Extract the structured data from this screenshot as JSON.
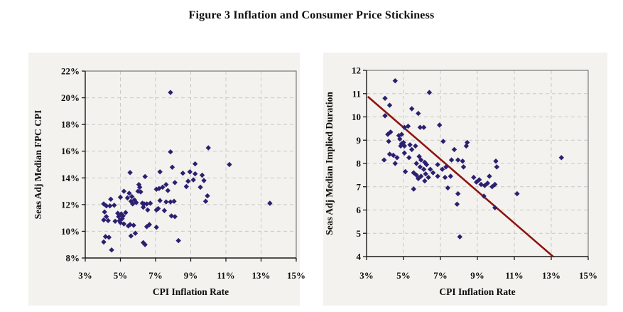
{
  "page": {
    "title": "Figure 3 Inflation and Consumer Price Stickiness"
  },
  "colors": {
    "marker": "#2b2070",
    "trend_line": "#8e1410",
    "grid": "#c8c8c6",
    "axis": "#1a1a1a",
    "frame": "#7d7d7d",
    "panel_background": "#f3f2ee",
    "text": "#0d0d0d"
  },
  "chart_data": [
    {
      "type": "scatter",
      "name": "inflation-vs-fpc-cpi",
      "xlabel": "CPI Inflation Rate",
      "ylabel": "Seas Adj Median FPC CPI",
      "xlim": [
        3,
        15
      ],
      "ylim": [
        8,
        22
      ],
      "x_tick_values": [
        3,
        5,
        7,
        9,
        11,
        13,
        15
      ],
      "x_tick_labels": [
        "3%",
        "5%",
        "7%",
        "9%",
        "11%",
        "13%",
        "15%"
      ],
      "y_tick_values": [
        8,
        10,
        12,
        14,
        16,
        18,
        20,
        22
      ],
      "y_tick_labels": [
        "8%",
        "10%",
        "12%",
        "14%",
        "16%",
        "18%",
        "20%",
        "22%"
      ],
      "grid": true,
      "legend": "none",
      "marker": "diamond",
      "points": [
        [
          4.05,
          9.2
        ],
        [
          4.15,
          9.6
        ],
        [
          4.35,
          9.55
        ],
        [
          4.5,
          8.6
        ],
        [
          4.05,
          10.85
        ],
        [
          4.1,
          11.45
        ],
        [
          4.2,
          11.1
        ],
        [
          4.3,
          10.8
        ],
        [
          4.7,
          10.75
        ],
        [
          4.95,
          10.8
        ],
        [
          5.0,
          10.65
        ],
        [
          5.2,
          10.55
        ],
        [
          4.05,
          12.05
        ],
        [
          4.2,
          11.9
        ],
        [
          4.4,
          11.9
        ],
        [
          4.45,
          12.4
        ],
        [
          4.65,
          11.95
        ],
        [
          4.85,
          11.35
        ],
        [
          4.9,
          11.1
        ],
        [
          5.05,
          11.3
        ],
        [
          5.1,
          10.95
        ],
        [
          5.15,
          11.15
        ],
        [
          5.3,
          11.4
        ],
        [
          5.45,
          10.4
        ],
        [
          5.55,
          10.5
        ],
        [
          5.75,
          10.45
        ],
        [
          5.6,
          9.65
        ],
        [
          5.85,
          9.85
        ],
        [
          5.0,
          12.55
        ],
        [
          5.2,
          13.0
        ],
        [
          5.4,
          12.5
        ],
        [
          5.5,
          12.85
        ],
        [
          5.55,
          14.4
        ],
        [
          5.6,
          12.25
        ],
        [
          5.65,
          12.6
        ],
        [
          5.7,
          12.05
        ],
        [
          5.8,
          12.35
        ],
        [
          5.9,
          12.15
        ],
        [
          6.0,
          13.0
        ],
        [
          6.05,
          13.5
        ],
        [
          6.1,
          13.3
        ],
        [
          6.15,
          12.95
        ],
        [
          6.25,
          12.1
        ],
        [
          6.3,
          11.8
        ],
        [
          6.35,
          12.05
        ],
        [
          6.4,
          14.1
        ],
        [
          6.5,
          12.05
        ],
        [
          6.55,
          11.6
        ],
        [
          6.7,
          12.1
        ],
        [
          6.3,
          9.15
        ],
        [
          6.4,
          9.0
        ],
        [
          6.5,
          10.35
        ],
        [
          6.65,
          10.5
        ],
        [
          7.05,
          10.3
        ],
        [
          8.3,
          9.3
        ],
        [
          7.05,
          13.15
        ],
        [
          7.2,
          13.2
        ],
        [
          7.25,
          14.45
        ],
        [
          7.4,
          13.3
        ],
        [
          7.6,
          13.5
        ],
        [
          7.7,
          13.05
        ],
        [
          7.25,
          12.3
        ],
        [
          7.6,
          12.2
        ],
        [
          7.85,
          12.2
        ],
        [
          8.05,
          12.25
        ],
        [
          7.05,
          11.6
        ],
        [
          7.15,
          11.7
        ],
        [
          7.5,
          11.55
        ],
        [
          7.9,
          11.15
        ],
        [
          8.1,
          11.1
        ],
        [
          7.85,
          20.4
        ],
        [
          7.85,
          15.95
        ],
        [
          7.95,
          14.8
        ],
        [
          8.1,
          13.65
        ],
        [
          8.55,
          14.35
        ],
        [
          8.95,
          14.45
        ],
        [
          9.25,
          14.3
        ],
        [
          8.85,
          13.75
        ],
        [
          9.15,
          13.85
        ],
        [
          9.65,
          14.2
        ],
        [
          9.75,
          13.8
        ],
        [
          8.75,
          13.35
        ],
        [
          9.55,
          13.3
        ],
        [
          9.25,
          15.05
        ],
        [
          9.95,
          12.65
        ],
        [
          9.85,
          12.25
        ],
        [
          10.0,
          16.25
        ],
        [
          11.2,
          15.0
        ],
        [
          13.5,
          12.1
        ]
      ]
    },
    {
      "type": "scatter",
      "name": "inflation-vs-implied-duration",
      "xlabel": "CPI Inflation Rate",
      "ylabel": "Seas Adj Median Implied Duration",
      "xlim": [
        3,
        15
      ],
      "ylim": [
        4,
        12
      ],
      "x_tick_values": [
        3,
        5,
        7,
        9,
        11,
        13,
        15
      ],
      "x_tick_labels": [
        "3%",
        "5%",
        "7%",
        "9%",
        "11%",
        "13%",
        "15%"
      ],
      "y_tick_values": [
        4,
        5,
        6,
        7,
        8,
        9,
        10,
        11,
        12
      ],
      "y_tick_labels": [
        "4",
        "5",
        "6",
        "7",
        "8",
        "9",
        "10",
        "11",
        "12"
      ],
      "grid": true,
      "legend": "none",
      "marker": "diamond",
      "trend_line": {
        "from": [
          3.1,
          10.85
        ],
        "to": [
          13.1,
          4.0
        ]
      },
      "points": [
        [
          3.95,
          8.15
        ],
        [
          4.0,
          10.8
        ],
        [
          4.0,
          10.05
        ],
        [
          4.15,
          9.25
        ],
        [
          4.2,
          8.95
        ],
        [
          4.25,
          10.5
        ],
        [
          4.25,
          8.4
        ],
        [
          4.3,
          9.35
        ],
        [
          4.45,
          8.35
        ],
        [
          4.55,
          11.55
        ],
        [
          4.55,
          8.0
        ],
        [
          4.65,
          8.25
        ],
        [
          4.75,
          9.2
        ],
        [
          4.8,
          9.05
        ],
        [
          4.85,
          8.75
        ],
        [
          4.9,
          9.25
        ],
        [
          4.9,
          8.85
        ],
        [
          5.0,
          8.9
        ],
        [
          5.05,
          9.55
        ],
        [
          5.05,
          8.75
        ],
        [
          5.05,
          8.45
        ],
        [
          5.1,
          7.65
        ],
        [
          5.25,
          9.6
        ],
        [
          5.3,
          8.25
        ],
        [
          5.35,
          8.8
        ],
        [
          5.45,
          10.35
        ],
        [
          5.45,
          8.6
        ],
        [
          5.55,
          7.6
        ],
        [
          5.55,
          6.9
        ],
        [
          5.65,
          8.75
        ],
        [
          5.7,
          8.0
        ],
        [
          5.7,
          7.5
        ],
        [
          5.8,
          10.15
        ],
        [
          5.8,
          7.35
        ],
        [
          5.85,
          8.3
        ],
        [
          5.9,
          9.55
        ],
        [
          5.9,
          7.85
        ],
        [
          5.95,
          8.15
        ],
        [
          5.95,
          7.45
        ],
        [
          6.1,
          9.55
        ],
        [
          6.1,
          7.75
        ],
        [
          6.15,
          8.05
        ],
        [
          6.15,
          7.25
        ],
        [
          6.2,
          7.55
        ],
        [
          6.25,
          7.95
        ],
        [
          6.35,
          7.4
        ],
        [
          6.4,
          11.05
        ],
        [
          6.45,
          7.75
        ],
        [
          6.6,
          7.6
        ],
        [
          6.85,
          7.95
        ],
        [
          6.85,
          7.45
        ],
        [
          6.95,
          9.65
        ],
        [
          7.1,
          7.75
        ],
        [
          7.15,
          8.95
        ],
        [
          7.25,
          7.4
        ],
        [
          7.3,
          7.85
        ],
        [
          7.4,
          6.95
        ],
        [
          7.55,
          7.45
        ],
        [
          7.6,
          8.15
        ],
        [
          7.75,
          8.6
        ],
        [
          7.9,
          6.25
        ],
        [
          7.95,
          8.15
        ],
        [
          7.95,
          6.7
        ],
        [
          8.05,
          4.85
        ],
        [
          8.2,
          8.1
        ],
        [
          8.25,
          7.85
        ],
        [
          8.4,
          8.75
        ],
        [
          8.45,
          8.9
        ],
        [
          8.8,
          7.4
        ],
        [
          8.95,
          7.2
        ],
        [
          9.1,
          7.3
        ],
        [
          9.2,
          7.1
        ],
        [
          9.4,
          7.05
        ],
        [
          9.55,
          7.15
        ],
        [
          9.65,
          7.45
        ],
        [
          9.8,
          7.0
        ],
        [
          9.95,
          7.1
        ],
        [
          9.35,
          6.6
        ],
        [
          9.95,
          6.1
        ],
        [
          10.0,
          8.1
        ],
        [
          10.05,
          7.85
        ],
        [
          11.15,
          6.7
        ],
        [
          13.55,
          8.25
        ]
      ]
    }
  ]
}
